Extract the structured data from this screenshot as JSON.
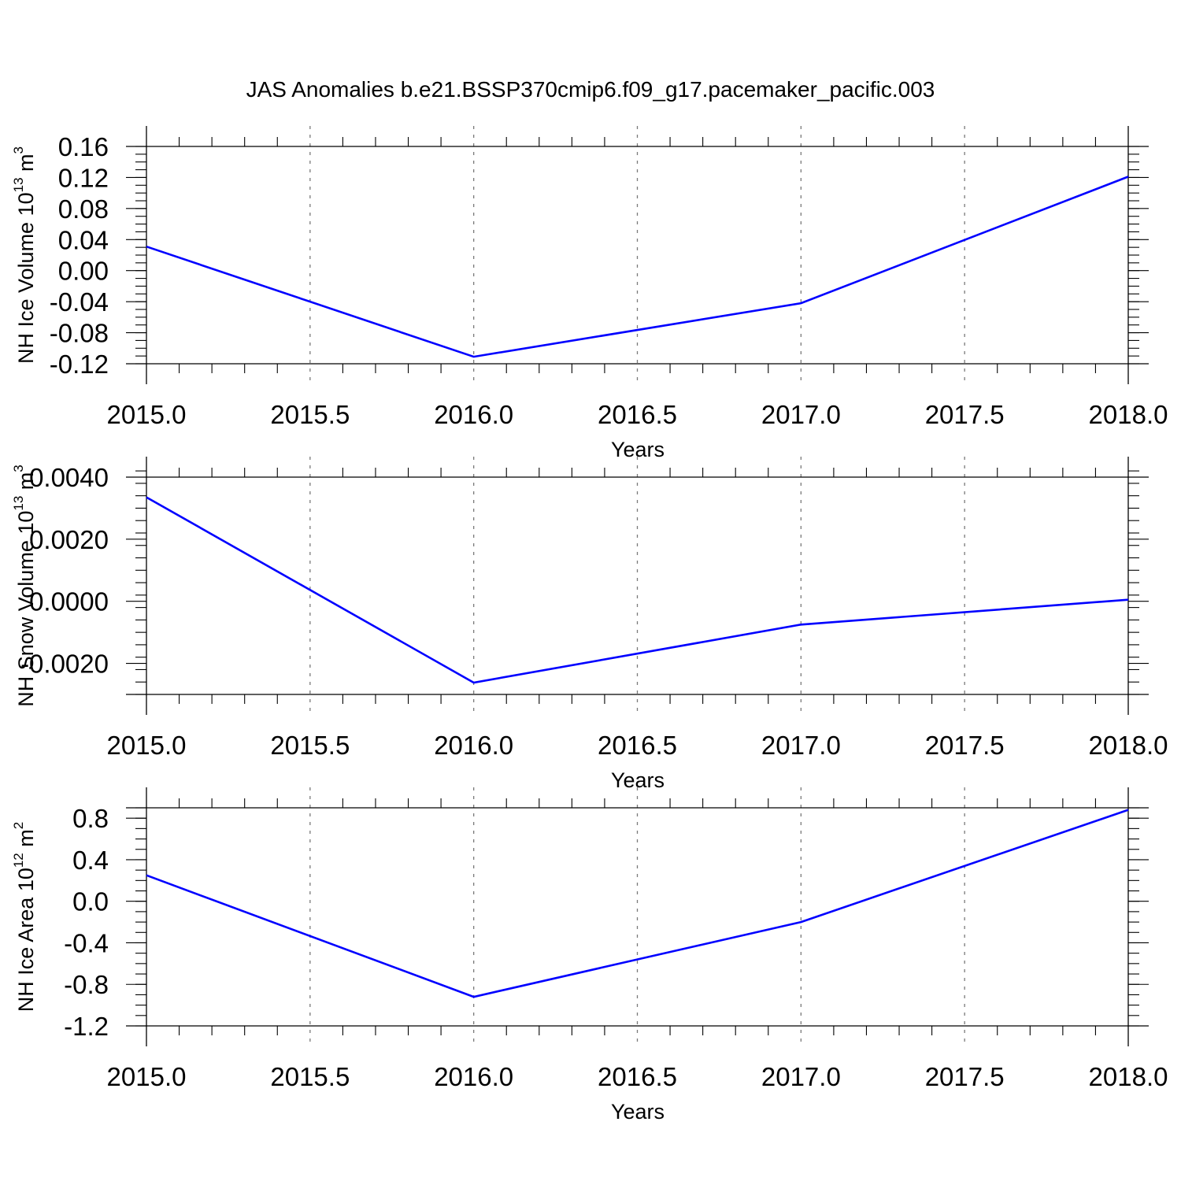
{
  "title": "JAS Anomalies b.e21.BSSP370cmip6.f09_g17.pacemaker_pacific.003",
  "colors": {
    "series": "#0000ff",
    "grid": "#7a7a7a",
    "frame": "#000000"
  },
  "chart_data": [
    {
      "type": "line",
      "xlabel": "Years",
      "ylabel": {
        "base": "NH Ice Volume 10",
        "exp": "13",
        "unit": " m",
        "unit_exp": "3"
      },
      "x": [
        2015.0,
        2016.0,
        2017.0,
        2018.0
      ],
      "xlim": [
        2015.0,
        2018.0
      ],
      "xticks": [
        2015.0,
        2015.5,
        2016.0,
        2016.5,
        2017.0,
        2017.5,
        2018.0
      ],
      "xtick_labels": [
        "2015.0",
        "2015.5",
        "2016.0",
        "2016.5",
        "2017.0",
        "2017.5",
        "2018.0"
      ],
      "xgrid": [
        2015.5,
        2016.0,
        2016.5,
        2017.0,
        2017.5
      ],
      "ylim": [
        -0.12,
        0.16
      ],
      "yticks": [
        -0.12,
        -0.08,
        -0.04,
        0.0,
        0.04,
        0.08,
        0.12,
        0.16
      ],
      "ytick_labels": [
        "-0.12",
        "-0.08",
        "-0.04",
        "0.00",
        "0.04",
        "0.08",
        "0.12",
        "0.16"
      ],
      "yminor_step": 0.01,
      "series": [
        {
          "values": [
            0.031,
            -0.111,
            -0.042,
            0.121
          ]
        }
      ],
      "grid": "vertical dashed"
    },
    {
      "type": "line",
      "xlabel": "Years",
      "ylabel": {
        "base": "NH Snow Volume 10",
        "exp": "13",
        "unit": " m",
        "unit_exp": "3"
      },
      "x": [
        2015.0,
        2016.0,
        2017.0,
        2018.0
      ],
      "xlim": [
        2015.0,
        2018.0
      ],
      "xticks": [
        2015.0,
        2015.5,
        2016.0,
        2016.5,
        2017.0,
        2017.5,
        2018.0
      ],
      "xtick_labels": [
        "2015.0",
        "2015.5",
        "2016.0",
        "2016.5",
        "2017.0",
        "2017.5",
        "2018.0"
      ],
      "xgrid": [
        2015.5,
        2016.0,
        2016.5,
        2017.0,
        2017.5
      ],
      "ylim": [
        -0.003,
        0.004
      ],
      "yticks": [
        -0.002,
        0.0,
        0.002,
        0.004
      ],
      "ytick_labels": [
        "-0.0020",
        "0.0000",
        "0.0020",
        "0.0040"
      ],
      "yminor_step": 0.0004,
      "series": [
        {
          "values": [
            0.00335,
            -0.00262,
            -0.00075,
            5e-05
          ]
        }
      ],
      "grid": "vertical dashed"
    },
    {
      "type": "line",
      "xlabel": "Years",
      "ylabel": {
        "base": "NH Ice Area 10",
        "exp": "12",
        "unit": " m",
        "unit_exp": "2"
      },
      "x": [
        2015.0,
        2016.0,
        2017.0,
        2018.0
      ],
      "xlim": [
        2015.0,
        2018.0
      ],
      "xticks": [
        2015.0,
        2015.5,
        2016.0,
        2016.5,
        2017.0,
        2017.5,
        2018.0
      ],
      "xtick_labels": [
        "2015.0",
        "2015.5",
        "2016.0",
        "2016.5",
        "2017.0",
        "2017.5",
        "2018.0"
      ],
      "xgrid": [
        2015.5,
        2016.0,
        2016.5,
        2017.0,
        2017.5
      ],
      "ylim": [
        -1.2,
        0.9
      ],
      "yticks": [
        -1.2,
        -0.8,
        -0.4,
        0.0,
        0.4,
        0.8
      ],
      "ytick_labels": [
        "-1.2",
        "-0.8",
        "-0.4",
        "0.0",
        "0.4",
        "0.8"
      ],
      "yminor_step": 0.1,
      "series": [
        {
          "values": [
            0.25,
            -0.92,
            -0.2,
            0.88
          ]
        }
      ],
      "grid": "vertical dashed"
    }
  ]
}
